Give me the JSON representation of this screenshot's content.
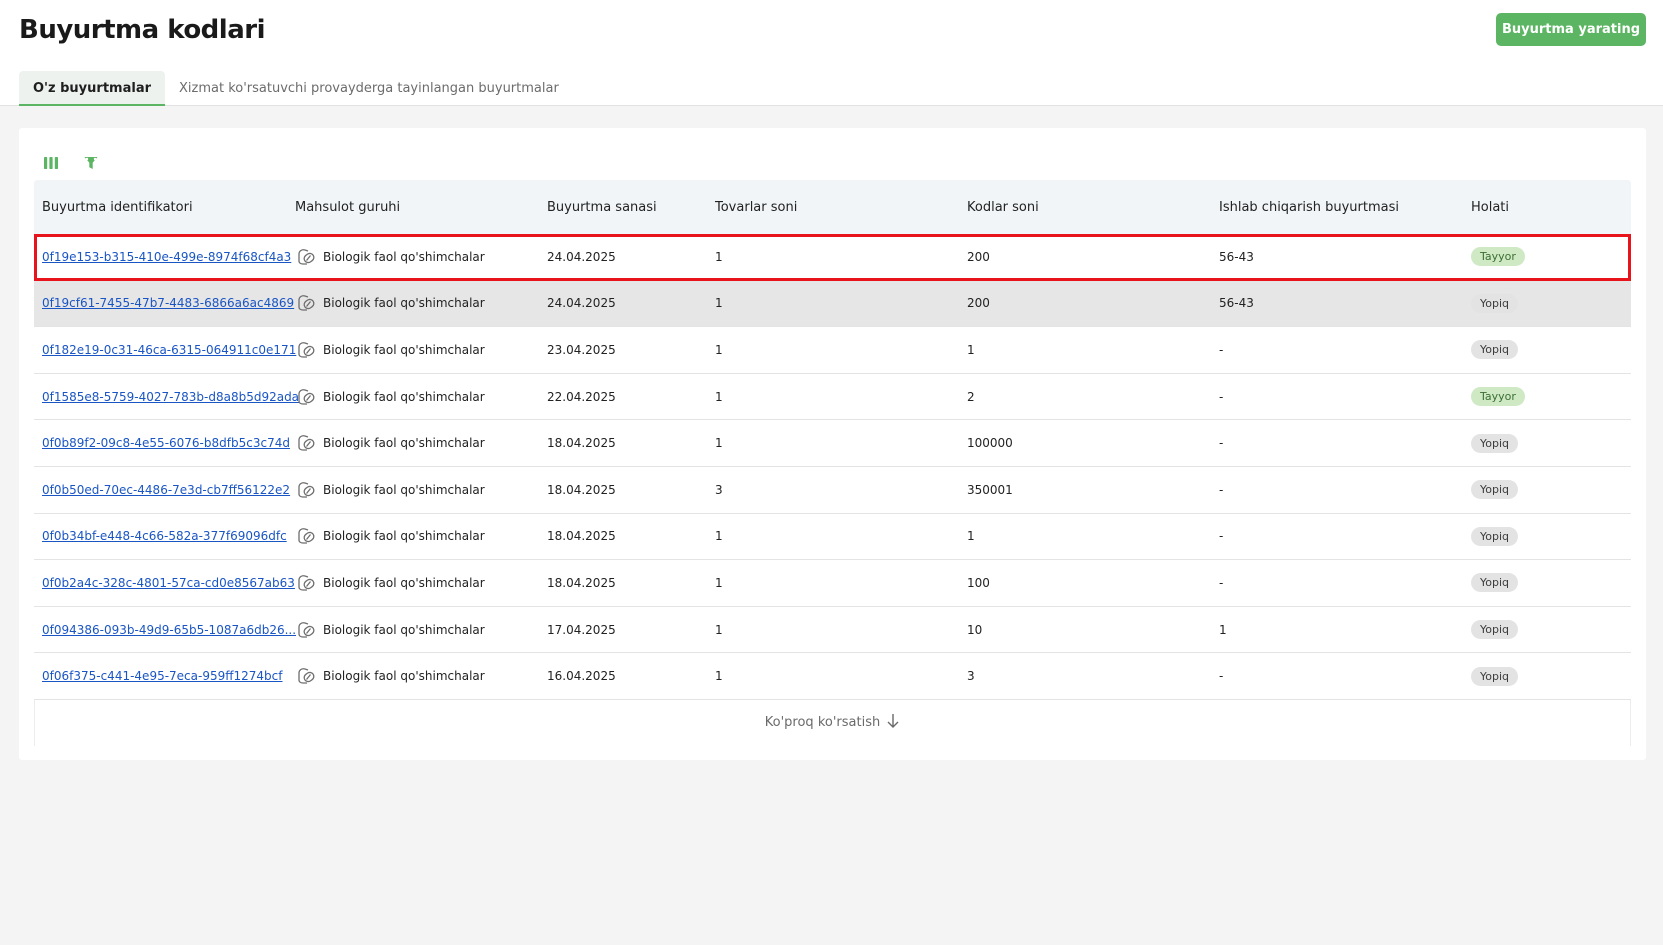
{
  "header": {
    "title": "Buyurtma kodlari",
    "create_button": "Buyurtma yarating"
  },
  "tabs": [
    {
      "label": "O'z buyurtmalar",
      "active": true
    },
    {
      "label": "Xizmat ko'rsatuvchi provayderga tayinlangan buyurtmalar",
      "active": false
    }
  ],
  "toolbar": {
    "icons": [
      "columns-icon",
      "filter-icon"
    ],
    "accent_color": "#5bb562"
  },
  "table": {
    "columns": [
      "Buyurtma identifikatori",
      "Mahsulot guruhi",
      "Buyurtma sanasi",
      "Tovarlar soni",
      "Kodlar soni",
      "Ishlab chiqarish buyurtmasi",
      "Holati"
    ],
    "rows": [
      {
        "id": "0f19e153-b315-410e-499e-8974f68cf4a3",
        "group": "Biologik faol qo'shimchalar",
        "date": "24.04.2025",
        "items": "1",
        "codes": "200",
        "production": "56-43",
        "status": "Tayyor",
        "status_kind": "ready"
      },
      {
        "id": "0f19cf61-7455-47b7-4483-6866a6ac4869",
        "group": "Biologik faol qo'shimchalar",
        "date": "24.04.2025",
        "items": "1",
        "codes": "200",
        "production": "56-43",
        "status": "Yopiq",
        "status_kind": "closed"
      },
      {
        "id": "0f182e19-0c31-46ca-6315-064911c0e171",
        "group": "Biologik faol qo'shimchalar",
        "date": "23.04.2025",
        "items": "1",
        "codes": "1",
        "production": "-",
        "status": "Yopiq",
        "status_kind": "closed"
      },
      {
        "id": "0f1585e8-5759-4027-783b-d8a8b5d92ada",
        "group": "Biologik faol qo'shimchalar",
        "date": "22.04.2025",
        "items": "1",
        "codes": "2",
        "production": "-",
        "status": "Tayyor",
        "status_kind": "ready"
      },
      {
        "id": "0f0b89f2-09c8-4e55-6076-b8dfb5c3c74d",
        "group": "Biologik faol qo'shimchalar",
        "date": "18.04.2025",
        "items": "1",
        "codes": "100000",
        "production": "-",
        "status": "Yopiq",
        "status_kind": "closed"
      },
      {
        "id": "0f0b50ed-70ec-4486-7e3d-cb7ff56122e2",
        "group": "Biologik faol qo'shimchalar",
        "date": "18.04.2025",
        "items": "3",
        "codes": "350001",
        "production": "-",
        "status": "Yopiq",
        "status_kind": "closed"
      },
      {
        "id": "0f0b34bf-e448-4c66-582a-377f69096dfc",
        "group": "Biologik faol qo'shimchalar",
        "date": "18.04.2025",
        "items": "1",
        "codes": "1",
        "production": "-",
        "status": "Yopiq",
        "status_kind": "closed"
      },
      {
        "id": "0f0b2a4c-328c-4801-57ca-cd0e8567ab63",
        "group": "Biologik faol qo'shimchalar",
        "date": "18.04.2025",
        "items": "1",
        "codes": "100",
        "production": "-",
        "status": "Yopiq",
        "status_kind": "closed"
      },
      {
        "id": "0f094386-093b-49d9-65b5-1087a6db26...",
        "group": "Biologik faol qo'shimchalar",
        "date": "17.04.2025",
        "items": "1",
        "codes": "10",
        "production": "1",
        "status": "Yopiq",
        "status_kind": "closed"
      },
      {
        "id": "0f06f375-c441-4e95-7eca-959ff1274bcf",
        "group": "Biologik faol qo'shimchalar",
        "date": "16.04.2025",
        "items": "1",
        "codes": "3",
        "production": "-",
        "status": "Yopiq",
        "status_kind": "closed"
      }
    ]
  },
  "show_more": {
    "label": "Ko'proq ko'rsatish",
    "icon": "arrow-down-icon"
  },
  "colors": {
    "selection_outline": "#e8141c",
    "link": "#1a55c4",
    "ready_badge_bg": "#cfe9c4",
    "closed_badge_bg": "#e3e3e3"
  }
}
